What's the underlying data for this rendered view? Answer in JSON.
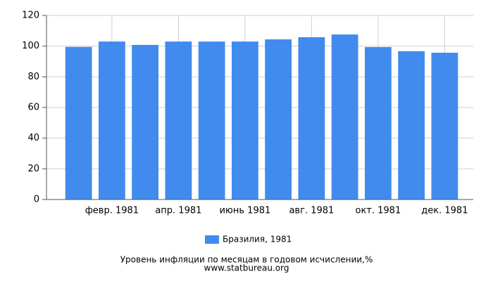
{
  "chart_data": {
    "type": "bar",
    "categories": [
      null,
      "февр. 1981",
      null,
      "апр. 1981",
      null,
      "июнь 1981",
      null,
      "авг. 1981",
      null,
      "окт. 1981",
      null,
      "дек. 1981"
    ],
    "series": [
      {
        "name": "Бразилия, 1981",
        "color": "#418bef",
        "values": [
          99.5,
          103,
          100.8,
          103,
          103,
          103,
          104.4,
          105.8,
          107.6,
          99.4,
          96.7,
          95.7
        ]
      }
    ],
    "ylim": [
      0,
      120
    ],
    "yticks": [
      0,
      20,
      40,
      60,
      80,
      100,
      120
    ],
    "grid": true,
    "legend": "bottom",
    "caption": "Уровень инфляции по месяцам в годовом исчислении,%",
    "source": "www.statbureau.org"
  }
}
